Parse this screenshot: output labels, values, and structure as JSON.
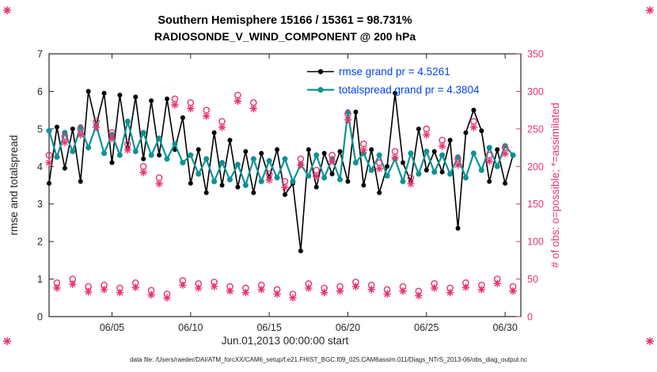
{
  "figure": {
    "title_line1": "Southern Hemisphere 15166 / 15361 = 98.731%",
    "title_line2": "RADIOSONDE_V_WIND_COMPONENT @ 200 hPa",
    "footer": "data file: /Users/raeder/DAI/ATM_forcXX/CAM6_setup/f.e21.FHIST_BGC.f09_025.CAM6assim.011/Diags_NTrS_2013-06/obs_diag_output.nc"
  },
  "legend": {
    "rmse_label": "rmse grand pr = 4.5261",
    "spread_label": "totalspread grand pr = 4.3804",
    "text_color": "#0044ee"
  },
  "axes": {
    "x_label": "Jun.01,2013 00:00:00 start",
    "y_left_label": "rmse and totalspread",
    "y_right_label": "# of obs: o=possible; *=assimilated",
    "axis_color": "#262626"
  },
  "colors": {
    "rmse": "#000000",
    "totalspread": "#0d9292",
    "obs_pink": "#e8336e",
    "legend_text": "#0044ee"
  },
  "chart_data": {
    "type": "line",
    "title": "Southern Hemisphere 15166 / 15361 = 98.731% — RADIOSONDE_V_WIND_COMPONENT @ 200 hPa",
    "xlabel": "Jun.01,2013 00:00:00 start",
    "ylabel_left": "rmse and totalspread",
    "ylabel_right": "# of obs: o=possible; *=assimilated",
    "x_range": [
      1,
      31
    ],
    "y_left": {
      "min": 0,
      "max": 7,
      "ticks": [
        0,
        1,
        2,
        3,
        4,
        5,
        6,
        7
      ]
    },
    "y_right": {
      "min": 0,
      "max": 350,
      "ticks": [
        0,
        50,
        100,
        150,
        200,
        250,
        300,
        350
      ]
    },
    "x_ticks": {
      "values": [
        5,
        10,
        15,
        20,
        25,
        30
      ],
      "labels": [
        "06/05",
        "06/10",
        "06/15",
        "06/20",
        "06/25",
        "06/30"
      ]
    },
    "grid": false,
    "legend_position": "top-center-inside",
    "x_days": [
      1,
      1.5,
      2,
      2.5,
      3,
      3.5,
      4,
      4.5,
      5,
      5.5,
      6,
      6.5,
      7,
      7.5,
      8,
      8.5,
      9,
      9.5,
      10,
      10.5,
      11,
      11.5,
      12,
      12.5,
      13,
      13.5,
      14,
      14.5,
      15,
      15.5,
      16,
      16.5,
      17,
      17.5,
      18,
      18.5,
      19,
      19.5,
      20,
      20.5,
      21,
      21.5,
      22,
      22.5,
      23,
      23.5,
      24,
      24.5,
      25,
      25.5,
      26,
      26.5,
      27,
      27.5,
      28,
      28.5,
      29,
      29.5,
      30,
      30.5
    ],
    "series": [
      {
        "name": "rmse",
        "axis": "left",
        "marker": "dot",
        "color": "#000000",
        "grand_pr": 4.5261,
        "values": [
          3.55,
          5.05,
          3.95,
          5.0,
          3.6,
          6.0,
          5.1,
          5.95,
          4.1,
          5.9,
          4.5,
          5.85,
          4.2,
          5.75,
          4.3,
          5.8,
          4.45,
          5.3,
          3.55,
          4.45,
          3.3,
          4.9,
          3.5,
          4.7,
          3.45,
          4.4,
          3.3,
          4.35,
          3.7,
          4.45,
          3.25,
          3.55,
          1.75,
          4.45,
          3.45,
          4.35,
          3.8,
          4.4,
          3.6,
          5.45,
          3.5,
          4.45,
          3.3,
          4.0,
          5.95,
          4.1,
          3.6,
          5.0,
          3.9,
          4.4,
          3.85,
          4.7,
          2.35,
          4.9,
          5.5,
          4.95,
          3.6,
          4.45,
          3.55,
          4.3
        ]
      },
      {
        "name": "totalspread",
        "axis": "left",
        "marker": "dot",
        "color": "#0d9292",
        "grand_pr": 4.3804,
        "values": [
          4.95,
          4.25,
          4.9,
          4.4,
          5.05,
          4.5,
          5.1,
          4.35,
          4.85,
          4.3,
          5.2,
          4.4,
          4.9,
          4.3,
          4.75,
          4.2,
          4.6,
          4.1,
          4.3,
          3.8,
          4.2,
          3.6,
          4.1,
          3.65,
          4.05,
          3.5,
          4.2,
          3.6,
          4.15,
          3.7,
          4.2,
          3.6,
          4.05,
          3.75,
          4.3,
          3.7,
          4.2,
          3.65,
          5.45,
          4.1,
          4.35,
          3.9,
          4.3,
          3.75,
          4.2,
          3.6,
          4.35,
          3.8,
          4.4,
          3.85,
          4.3,
          3.8,
          4.25,
          3.7,
          4.35,
          3.9,
          4.5,
          4.0,
          4.55,
          4.3
        ]
      },
      {
        "name": "N_possible",
        "axis": "right",
        "marker": "circle",
        "color": "#e8336e",
        "values": [
          215,
          45,
          240,
          50,
          250,
          40,
          260,
          42,
          245,
          38,
          230,
          45,
          200,
          35,
          185,
          30,
          290,
          48,
          285,
          44,
          275,
          46,
          260,
          40,
          295,
          38,
          285,
          42,
          190,
          36,
          180,
          30,
          210,
          44,
          195,
          38,
          215,
          40,
          270,
          46,
          230,
          42,
          205,
          36,
          220,
          40,
          185,
          34,
          250,
          44,
          235,
          38,
          210,
          45,
          260,
          42,
          215,
          50,
          225,
          40
        ]
      },
      {
        "name": "N_assimilated",
        "axis": "right",
        "marker": "asterisk",
        "color": "#e8336e",
        "values": [
          205,
          38,
          232,
          43,
          242,
          33,
          252,
          36,
          237,
          32,
          222,
          39,
          192,
          29,
          177,
          25,
          282,
          42,
          277,
          38,
          267,
          40,
          252,
          34,
          287,
          32,
          277,
          36,
          182,
          30,
          172,
          25,
          202,
          38,
          187,
          32,
          207,
          34,
          262,
          40,
          222,
          36,
          197,
          30,
          212,
          34,
          177,
          28,
          242,
          38,
          227,
          32,
          202,
          39,
          252,
          36,
          207,
          44,
          217,
          34
        ]
      }
    ]
  }
}
